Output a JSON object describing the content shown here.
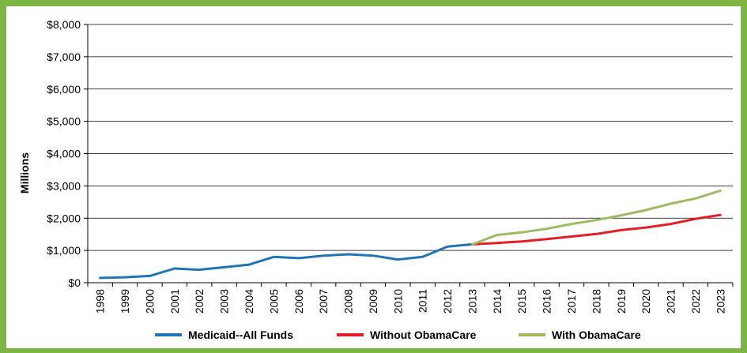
{
  "chart_data": {
    "type": "line",
    "title": "",
    "xlabel": "",
    "ylabel": "Millions",
    "ylim": [
      0,
      8000
    ],
    "y_ticks": [
      {
        "value": 0,
        "label": "$0"
      },
      {
        "value": 1000,
        "label": "$1,000"
      },
      {
        "value": 2000,
        "label": "$2,000"
      },
      {
        "value": 3000,
        "label": "$3,000"
      },
      {
        "value": 4000,
        "label": "$4,000"
      },
      {
        "value": 5000,
        "label": "$5,000"
      },
      {
        "value": 6000,
        "label": "$6,000"
      },
      {
        "value": 7000,
        "label": "$7,000"
      },
      {
        "value": 8000,
        "label": "$8,000"
      }
    ],
    "categories": [
      "1998",
      "1999",
      "2000",
      "2001",
      "2002",
      "2003",
      "2004",
      "2005",
      "2006",
      "2007",
      "2008",
      "2009",
      "2010",
      "2011",
      "2012",
      "2013",
      "2014",
      "2015",
      "2016",
      "2017",
      "2018",
      "2019",
      "2020",
      "2021",
      "2022",
      "2023"
    ],
    "grid": true,
    "legend_position": "bottom",
    "series": [
      {
        "name": "Medicaid--All Funds",
        "color": "#1f75b6",
        "x": [
          "1998",
          "1999",
          "2000",
          "2001",
          "2002",
          "2003",
          "2004",
          "2005",
          "2006",
          "2007",
          "2008",
          "2009",
          "2010",
          "2011",
          "2012",
          "2013"
        ],
        "values": [
          150,
          170,
          210,
          440,
          400,
          480,
          560,
          800,
          760,
          840,
          880,
          840,
          720,
          800,
          1120,
          1190
        ]
      },
      {
        "name": "Without ObamaCare",
        "color": "#e41e26",
        "x": [
          "2013",
          "2014",
          "2015",
          "2016",
          "2017",
          "2018",
          "2019",
          "2020",
          "2021",
          "2022",
          "2023"
        ],
        "values": [
          1190,
          1230,
          1280,
          1350,
          1430,
          1510,
          1630,
          1710,
          1820,
          1980,
          2100
        ]
      },
      {
        "name": "With ObamaCare",
        "color": "#9dbb61",
        "x": [
          "2013",
          "2014",
          "2015",
          "2016",
          "2017",
          "2018",
          "2019",
          "2020",
          "2021",
          "2022",
          "2023"
        ],
        "values": [
          1190,
          1480,
          1560,
          1670,
          1820,
          1940,
          2090,
          2250,
          2450,
          2610,
          2850
        ]
      }
    ]
  }
}
